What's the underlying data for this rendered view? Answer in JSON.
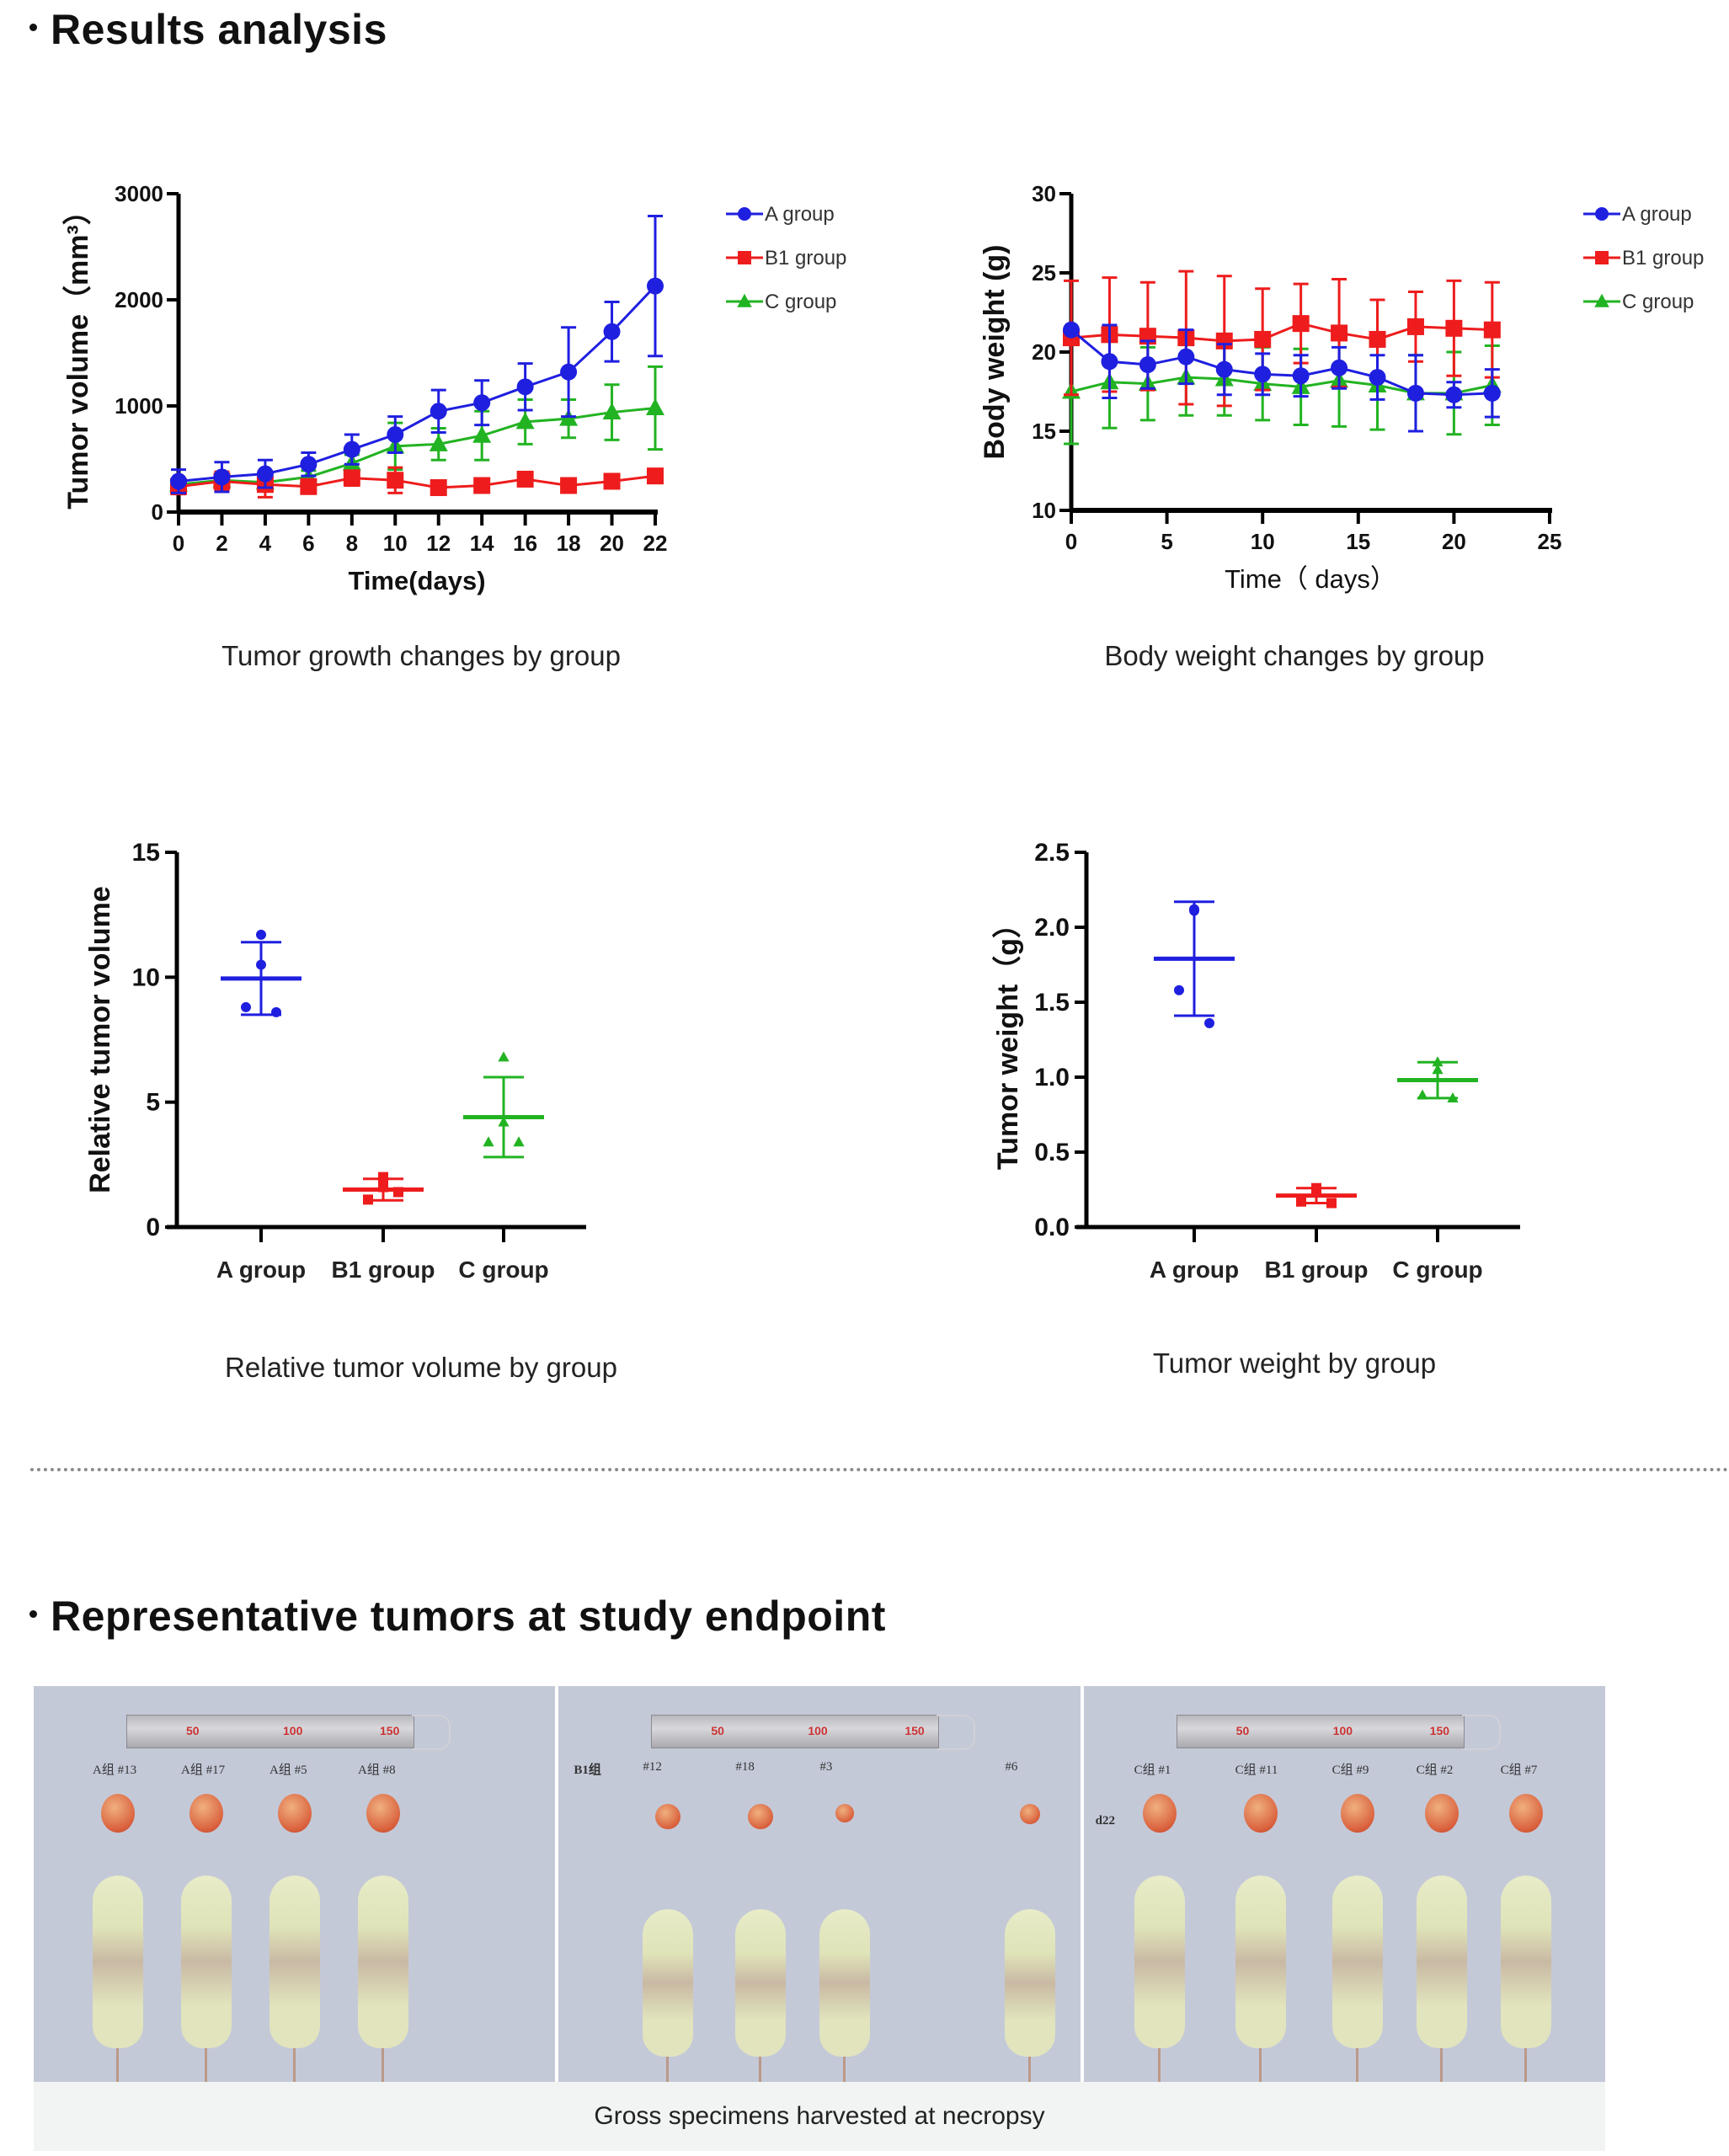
{
  "sections": {
    "results_heading": "Results analysis",
    "tumors_heading": "Representative tumors at study endpoint"
  },
  "legend": {
    "A": "A group",
    "B1": "B1 group",
    "C": "C group"
  },
  "colors": {
    "A": "#1f1fe0",
    "B1": "#ee1c1c",
    "C": "#22b322"
  },
  "chart_data": [
    {
      "id": "tumor-growth",
      "type": "line",
      "caption": "Tumor growth changes by group",
      "xlabel": "Time(days)",
      "ylabel": "Tumor volume（mm³）",
      "xlim": [
        0,
        22
      ],
      "ylim": [
        0,
        3000
      ],
      "xticks": [
        0,
        2,
        4,
        6,
        8,
        10,
        12,
        14,
        16,
        18,
        20,
        22
      ],
      "yticks": [
        0,
        1000,
        2000,
        3000
      ],
      "legend_position": "top-right",
      "x": [
        0,
        2,
        4,
        6,
        8,
        10,
        12,
        14,
        16,
        18,
        20,
        22
      ],
      "series": [
        {
          "name": "A group",
          "key": "A",
          "marker": "circle",
          "values": [
            290,
            330,
            360,
            450,
            590,
            730,
            950,
            1030,
            1180,
            1320,
            1700,
            2130
          ],
          "errors": [
            110,
            140,
            130,
            110,
            140,
            170,
            200,
            210,
            220,
            420,
            280,
            660
          ]
        },
        {
          "name": "B1 group",
          "key": "B1",
          "marker": "square",
          "values": [
            240,
            290,
            260,
            240,
            320,
            300,
            230,
            250,
            310,
            250,
            290,
            340
          ],
          "errors": [
            70,
            90,
            120,
            60,
            70,
            120,
            40,
            40,
            40,
            40,
            40,
            40
          ]
        },
        {
          "name": "C group",
          "key": "C",
          "marker": "triangle",
          "values": [
            260,
            300,
            280,
            330,
            460,
            620,
            640,
            720,
            850,
            880,
            940,
            980
          ],
          "errors": [
            50,
            60,
            60,
            60,
            80,
            220,
            150,
            230,
            210,
            180,
            260,
            390
          ]
        }
      ]
    },
    {
      "id": "body-weight",
      "type": "line",
      "caption": "Body weight changes by group",
      "xlabel": "Time（ days）",
      "ylabel": "Body weight (g)",
      "xlim": [
        0,
        25
      ],
      "ylim": [
        10,
        30
      ],
      "xticks": [
        0,
        5,
        10,
        15,
        20,
        25
      ],
      "yticks": [
        10,
        15,
        20,
        25,
        30
      ],
      "legend_position": "top-right",
      "x": [
        0,
        2,
        4,
        6,
        8,
        10,
        12,
        14,
        16,
        18,
        20,
        22
      ],
      "series": [
        {
          "name": "A group",
          "key": "A",
          "marker": "circle",
          "values": [
            21.4,
            19.4,
            19.2,
            19.7,
            18.9,
            18.6,
            18.5,
            19.0,
            18.4,
            17.4,
            17.3,
            17.4
          ],
          "errors": [
            0.1,
            2.3,
            1.5,
            1.7,
            1.6,
            1.3,
            1.3,
            1.3,
            1.4,
            2.4,
            0.8,
            1.5
          ]
        },
        {
          "name": "B1 group",
          "key": "B1",
          "marker": "square",
          "values": [
            20.9,
            21.1,
            21.0,
            20.9,
            20.7,
            20.8,
            21.8,
            21.2,
            20.8,
            21.6,
            21.5,
            21.4
          ],
          "errors": [
            3.6,
            3.6,
            3.4,
            4.2,
            4.1,
            3.2,
            2.5,
            3.4,
            2.5,
            2.2,
            3.0,
            3.0
          ]
        },
        {
          "name": "C group",
          "key": "C",
          "marker": "triangle",
          "values": [
            17.5,
            18.1,
            18.0,
            18.4,
            18.3,
            18.0,
            17.8,
            18.2,
            17.9,
            17.4,
            17.4,
            17.9
          ],
          "errors": [
            3.3,
            2.9,
            2.3,
            2.4,
            2.3,
            2.3,
            2.4,
            2.9,
            2.8,
            2.4,
            2.6,
            2.5
          ]
        }
      ]
    },
    {
      "id": "relative-tumor-volume",
      "type": "scatter",
      "caption": "Relative tumor volume by group",
      "xlabel": "",
      "ylabel": "Relative tumor volume",
      "ylim": [
        0,
        15
      ],
      "yticks": [
        0,
        5,
        10,
        15
      ],
      "categories": [
        "A group",
        "B1 group",
        "C group"
      ],
      "groups": [
        {
          "key": "A",
          "marker": "circle",
          "mean": 9.95,
          "sd": 1.45,
          "points": [
            11.7,
            10.5,
            8.8,
            8.6
          ]
        },
        {
          "key": "B1",
          "marker": "square",
          "mean": 1.5,
          "sd": 0.43,
          "points": [
            2.0,
            1.6,
            1.1,
            1.4
          ]
        },
        {
          "key": "C",
          "marker": "triangle",
          "mean": 4.4,
          "sd": 1.6,
          "points": [
            6.8,
            4.2,
            3.4,
            3.4
          ]
        }
      ]
    },
    {
      "id": "tumor-weight",
      "type": "scatter",
      "caption": "Tumor weight by group",
      "xlabel": "",
      "ylabel": "Tumor weight（g）",
      "ylim": [
        0,
        2.5
      ],
      "yticks": [
        "0.0",
        "0.5",
        "1.0",
        "1.5",
        "2.0",
        "2.5"
      ],
      "categories": [
        "A group",
        "B1 group",
        "C group"
      ],
      "groups": [
        {
          "key": "A",
          "marker": "circle",
          "mean": 1.79,
          "sd": 0.38,
          "points": [
            2.11,
            2.12,
            1.58,
            1.36
          ]
        },
        {
          "key": "B1",
          "marker": "square",
          "mean": 0.21,
          "sd": 0.05,
          "points": [
            0.26,
            0.25,
            0.17,
            0.16
          ]
        },
        {
          "key": "C",
          "marker": "triangle",
          "mean": 0.98,
          "sd": 0.12,
          "points": [
            1.1,
            1.05,
            0.88,
            0.86
          ]
        }
      ]
    }
  ],
  "photos": {
    "caption": "Gross specimens harvested at necropsy",
    "ruler_marks": [
      "50",
      "100",
      "150"
    ],
    "panels": [
      {
        "group_label": "",
        "day_label": "",
        "specimens": [
          "A组 #13",
          "A组 #17",
          "A组 #5",
          "A组 #8"
        ]
      },
      {
        "group_label": "B1组",
        "day_label": "",
        "specimens": [
          "#12",
          "#18",
          "#3",
          "#6"
        ]
      },
      {
        "group_label": "",
        "day_label": "d22",
        "specimens": [
          "C组 #1",
          "C组 #11",
          "C组 #9",
          "C组 #2",
          "C组 #7"
        ]
      }
    ]
  }
}
